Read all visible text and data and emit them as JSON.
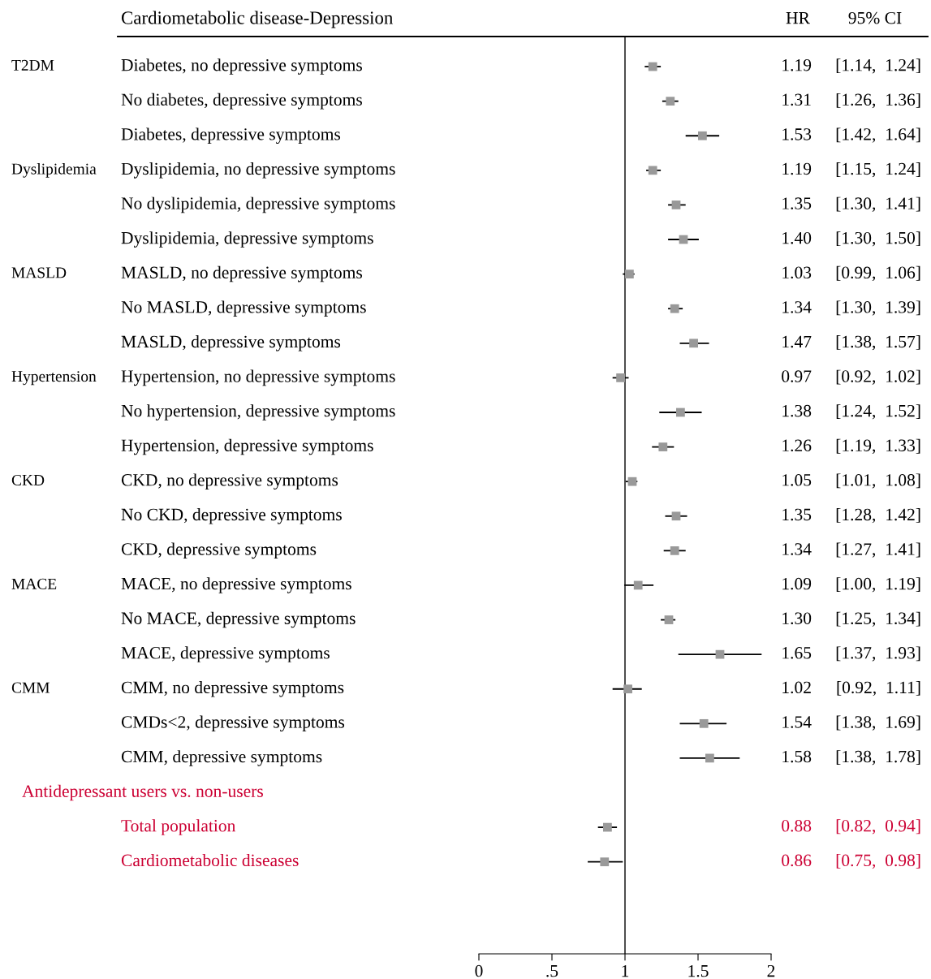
{
  "chart_data": {
    "type": "scatter",
    "orientation": "horizontal",
    "marker": "square",
    "title": "Cardiometabolic disease-Depression",
    "categories": [
      "Diabetes, no depressive symptoms",
      "No diabetes, depressive symptoms",
      "Diabetes, depressive symptoms",
      "Dyslipidemia, no depressive symptoms",
      "No dyslipidemia, depressive symptoms",
      "Dyslipidemia, depressive symptoms",
      "MASLD, no depressive symptoms",
      "No MASLD, depressive symptoms",
      "MASLD, depressive symptoms",
      "Hypertension, no depressive symptoms",
      "No hypertension, depressive symptoms",
      "Hypertension, depressive symptoms",
      "CKD, no depressive symptoms",
      "No CKD, depressive symptoms",
      "CKD, depressive symptoms",
      "MACE, no depressive symptoms",
      "No MACE, depressive symptoms",
      "MACE, depressive symptoms",
      "CMM, no depressive symptoms",
      "CMDs<2, depressive symptoms",
      "CMM, depressive symptoms",
      "Total population",
      "Cardiometabolic diseases"
    ],
    "series": [
      {
        "color": "#999999",
        "values": [
          1.19,
          1.31,
          1.53,
          1.19,
          1.35,
          1.4,
          1.03,
          1.34,
          1.47,
          0.97,
          1.38,
          1.26,
          1.05,
          1.35,
          1.34,
          1.09,
          1.3,
          1.65,
          1.02,
          1.54,
          1.58,
          null,
          null
        ],
        "errors": [
          [
            1.14,
            1.24
          ],
          [
            1.26,
            1.36
          ],
          [
            1.42,
            1.64
          ],
          [
            1.15,
            1.24
          ],
          [
            1.3,
            1.41
          ],
          [
            1.3,
            1.5
          ],
          [
            0.99,
            1.06
          ],
          [
            1.3,
            1.39
          ],
          [
            1.38,
            1.57
          ],
          [
            0.92,
            1.02
          ],
          [
            1.24,
            1.52
          ],
          [
            1.19,
            1.33
          ],
          [
            1.01,
            1.08
          ],
          [
            1.28,
            1.42
          ],
          [
            1.27,
            1.41
          ],
          [
            1.0,
            1.19
          ],
          [
            1.25,
            1.34
          ],
          [
            1.37,
            1.93
          ],
          [
            0.92,
            1.11
          ],
          [
            1.38,
            1.69
          ],
          [
            1.38,
            1.78
          ],
          null,
          null
        ],
        "value_labels": [
          "1.19 [1.14,  1.24]",
          "1.31 [1.26,  1.36]",
          "1.53 [1.42,  1.64]",
          "1.19 [1.15,  1.24]",
          "1.35 [1.30,  1.41]",
          "1.40 [1.30,  1.50]",
          "1.03 [0.99,  1.06]",
          "1.34 [1.30,  1.39]",
          "1.47 [1.38,  1.57]",
          "0.97 [0.92,  1.02]",
          "1.38 [1.24,  1.52]",
          "1.26 [1.19,  1.33]",
          "1.05 [1.01,  1.08]",
          "1.35 [1.28,  1.42]",
          "1.34 [1.27,  1.41]",
          "1.09 [1.00,  1.19]",
          "1.30 [1.25,  1.34]",
          "1.65 [1.37,  1.93]",
          "1.02 [0.92,  1.11]",
          "1.54 [1.38,  1.69]",
          "1.58 [1.38,  1.78]",
          null,
          null
        ]
      },
      {
        "color": "#999999",
        "values": [
          null,
          null,
          null,
          null,
          null,
          null,
          null,
          null,
          null,
          null,
          null,
          null,
          null,
          null,
          null,
          null,
          null,
          null,
          null,
          null,
          null,
          0.88,
          0.86
        ],
        "errors": [
          null,
          null,
          null,
          null,
          null,
          null,
          null,
          null,
          null,
          null,
          null,
          null,
          null,
          null,
          null,
          null,
          null,
          null,
          null,
          null,
          null,
          [
            0.82,
            0.94
          ],
          [
            0.75,
            0.98
          ]
        ],
        "value_labels": [
          null,
          null,
          null,
          null,
          null,
          null,
          null,
          null,
          null,
          null,
          null,
          null,
          null,
          null,
          null,
          null,
          null,
          null,
          null,
          null,
          null,
          "0.88 [0.82,  0.94]",
          "0.86 [0.75,  0.98]"
        ]
      }
    ],
    "xlim": [
      0,
      2
    ],
    "xticks": [
      0,
      {
        "value": 0.5,
        "label": ".5"
      },
      1,
      1.5,
      2
    ],
    "ref_lines": [
      {
        "axis": "x",
        "value": 1
      }
    ],
    "annotations": [
      "HR",
      "95% CI",
      "T2DM",
      "Dyslipidemia",
      "MASLD",
      "Hypertension",
      "CKD",
      "MACE",
      "CMM",
      "Antidepressant users vs. non-users"
    ],
    "tick_labels": "x",
    "grid": false,
    "legend": false
  }
}
